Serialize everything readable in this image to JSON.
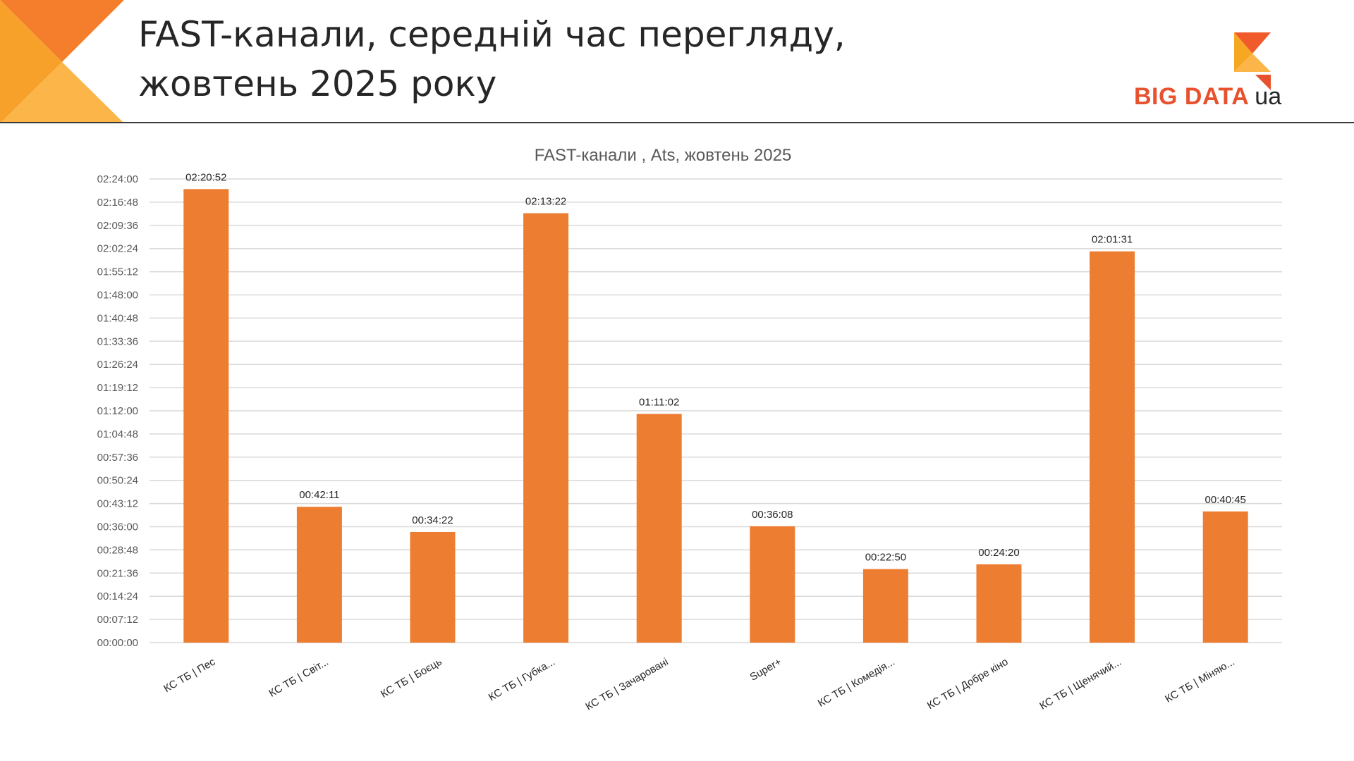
{
  "slide": {
    "title_line1": "FAST-канали, середній час перегляду,",
    "title_line2": "жовтень 2025 року",
    "logo": {
      "text": "BIG DATA",
      "suffix": "ua"
    },
    "accent_color": "#ED7D31",
    "brand_orange": "#E8512E",
    "brand_yellow": "#F7A823"
  },
  "chart_data": {
    "type": "bar",
    "title": "FAST-канали , Ats, жовтень 2025",
    "categories": [
      "КС ТБ | Пес",
      "КС ТБ | Світ...",
      "КС ТБ | Боєць",
      "КС ТБ | Губка...",
      "КС ТБ | Зачаровані",
      "Super+",
      "КС ТБ | Комедія...",
      "КС ТБ | Добре кіно",
      "КС ТБ | Щенячий...",
      "КС ТБ | Міняю..."
    ],
    "values": [
      8452,
      2531,
      2062,
      8002,
      4262,
      2168,
      1370,
      1460,
      7291,
      2445
    ],
    "data_labels": [
      "02:20:52",
      "00:42:11",
      "00:34:22",
      "02:13:22",
      "01:11:02",
      "00:36:08",
      "00:22:50",
      "00:24:20",
      "02:01:31",
      "00:40:45"
    ],
    "value_unit": "seconds",
    "ylim": [
      0,
      8640
    ],
    "ytick_step": 432,
    "ytick_labels": [
      "00:00:00",
      "00:07:12",
      "00:14:24",
      "00:21:36",
      "00:28:48",
      "00:36:00",
      "00:43:12",
      "00:50:24",
      "00:57:36",
      "01:04:48",
      "01:12:00",
      "01:19:12",
      "01:26:24",
      "01:33:36",
      "01:40:48",
      "01:48:00",
      "01:55:12",
      "02:02:24",
      "02:09:36",
      "02:16:48",
      "02:24:00"
    ],
    "grid": true,
    "bar_color": "#ED7D31",
    "xlabel": "",
    "ylabel": ""
  }
}
